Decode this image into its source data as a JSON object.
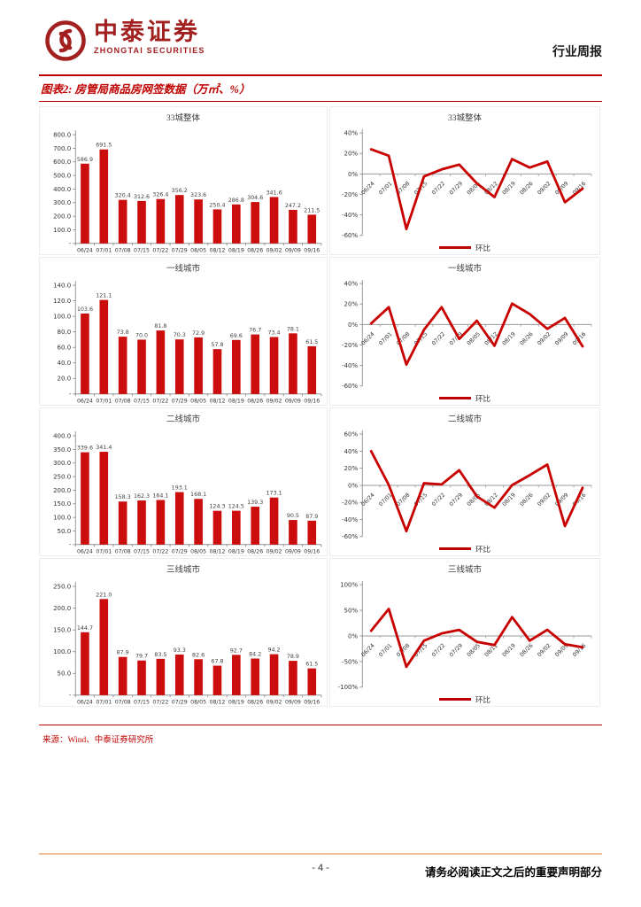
{
  "header": {
    "brand_cn": "中泰证券",
    "brand_en": "ZHONGTAI SECURITIES",
    "report_type": "行业周报"
  },
  "figure": {
    "title": "图表2: 房管局商品房网签数据（万㎡、%）"
  },
  "icons": {
    "logo": "zhongtai-securities-emblem"
  },
  "colors": {
    "accent_red": "#C00000",
    "bar_red": "#CC0D0D",
    "line_red": "#C80000",
    "brand_red": "#A32020",
    "axis_gray": "#808080",
    "footer_rule": "#EDBE96"
  },
  "source": "来源：Wind、中泰证券研究所",
  "footer": {
    "page_number": "- 4 -",
    "disclaimer": "请务必阅读正文之后的重要声明部分"
  },
  "chart_data": {
    "categories": [
      "06/24",
      "07/01",
      "07/08",
      "07/15",
      "07/22",
      "07/29",
      "08/05",
      "08/12",
      "08/19",
      "08/26",
      "09/02",
      "09/09",
      "09/16"
    ],
    "charts": [
      {
        "type": "bar",
        "title": "33城整体",
        "unit": "万㎡",
        "ylim": [
          0,
          800
        ],
        "ystep": 100,
        "values": [
          586.9,
          691.5,
          320.4,
          312.6,
          326.4,
          356.2,
          323.6,
          250.4,
          286.8,
          304.6,
          341.6,
          247.2,
          211.5
        ]
      },
      {
        "type": "line",
        "title": "33城整体",
        "unit": "%",
        "ylim": [
          -60,
          40
        ],
        "ystep": 20,
        "legend": "环比",
        "values": [
          24.0,
          17.8,
          -53.7,
          -2.4,
          4.4,
          9.1,
          -9.2,
          -22.6,
          14.5,
          6.2,
          12.1,
          -27.6,
          -14.4
        ]
      },
      {
        "type": "bar",
        "title": "一线城市",
        "unit": "万㎡",
        "ylim": [
          0,
          140
        ],
        "ystep": 20,
        "values": [
          103.6,
          121.1,
          73.8,
          70.0,
          81.8,
          70.3,
          72.9,
          57.8,
          69.6,
          76.7,
          73.4,
          78.1,
          61.5
        ]
      },
      {
        "type": "line",
        "title": "一线城市",
        "unit": "%",
        "ylim": [
          -60,
          40
        ],
        "ystep": 20,
        "legend": "环比",
        "values": [
          1.0,
          16.9,
          -39.1,
          -5.1,
          16.9,
          -14.1,
          3.7,
          -20.7,
          20.4,
          10.2,
          -4.3,
          6.4,
          -21.3
        ]
      },
      {
        "type": "bar",
        "title": "二线城市",
        "unit": "万㎡",
        "ylim": [
          0,
          400
        ],
        "ystep": 50,
        "values": [
          339.6,
          341.4,
          158.3,
          162.3,
          164.1,
          193.1,
          168.1,
          124.3,
          124.5,
          139.3,
          173.1,
          90.5,
          87.9
        ]
      },
      {
        "type": "line",
        "title": "二线城市",
        "unit": "%",
        "ylim": [
          -60,
          60
        ],
        "ystep": 20,
        "legend": "环比",
        "values": [
          40.0,
          0.5,
          -53.6,
          2.5,
          1.1,
          17.7,
          -12.9,
          -26.1,
          0.2,
          11.9,
          24.3,
          -47.7,
          -2.9
        ]
      },
      {
        "type": "bar",
        "title": "三线城市",
        "unit": "万㎡",
        "ylim": [
          0,
          250
        ],
        "ystep": 50,
        "values": [
          144.7,
          221.0,
          87.9,
          79.7,
          83.5,
          93.3,
          82.6,
          67.8,
          92.7,
          84.2,
          94.2,
          78.9,
          61.5
        ]
      },
      {
        "type": "line",
        "title": "三线城市",
        "unit": "%",
        "ylim": [
          -100,
          100
        ],
        "ystep": 50,
        "legend": "环比",
        "values": [
          10.0,
          52.7,
          -60.2,
          -9.3,
          4.8,
          11.7,
          -11.5,
          -17.9,
          36.7,
          -9.2,
          11.9,
          -16.2,
          -22.1
        ]
      }
    ]
  }
}
